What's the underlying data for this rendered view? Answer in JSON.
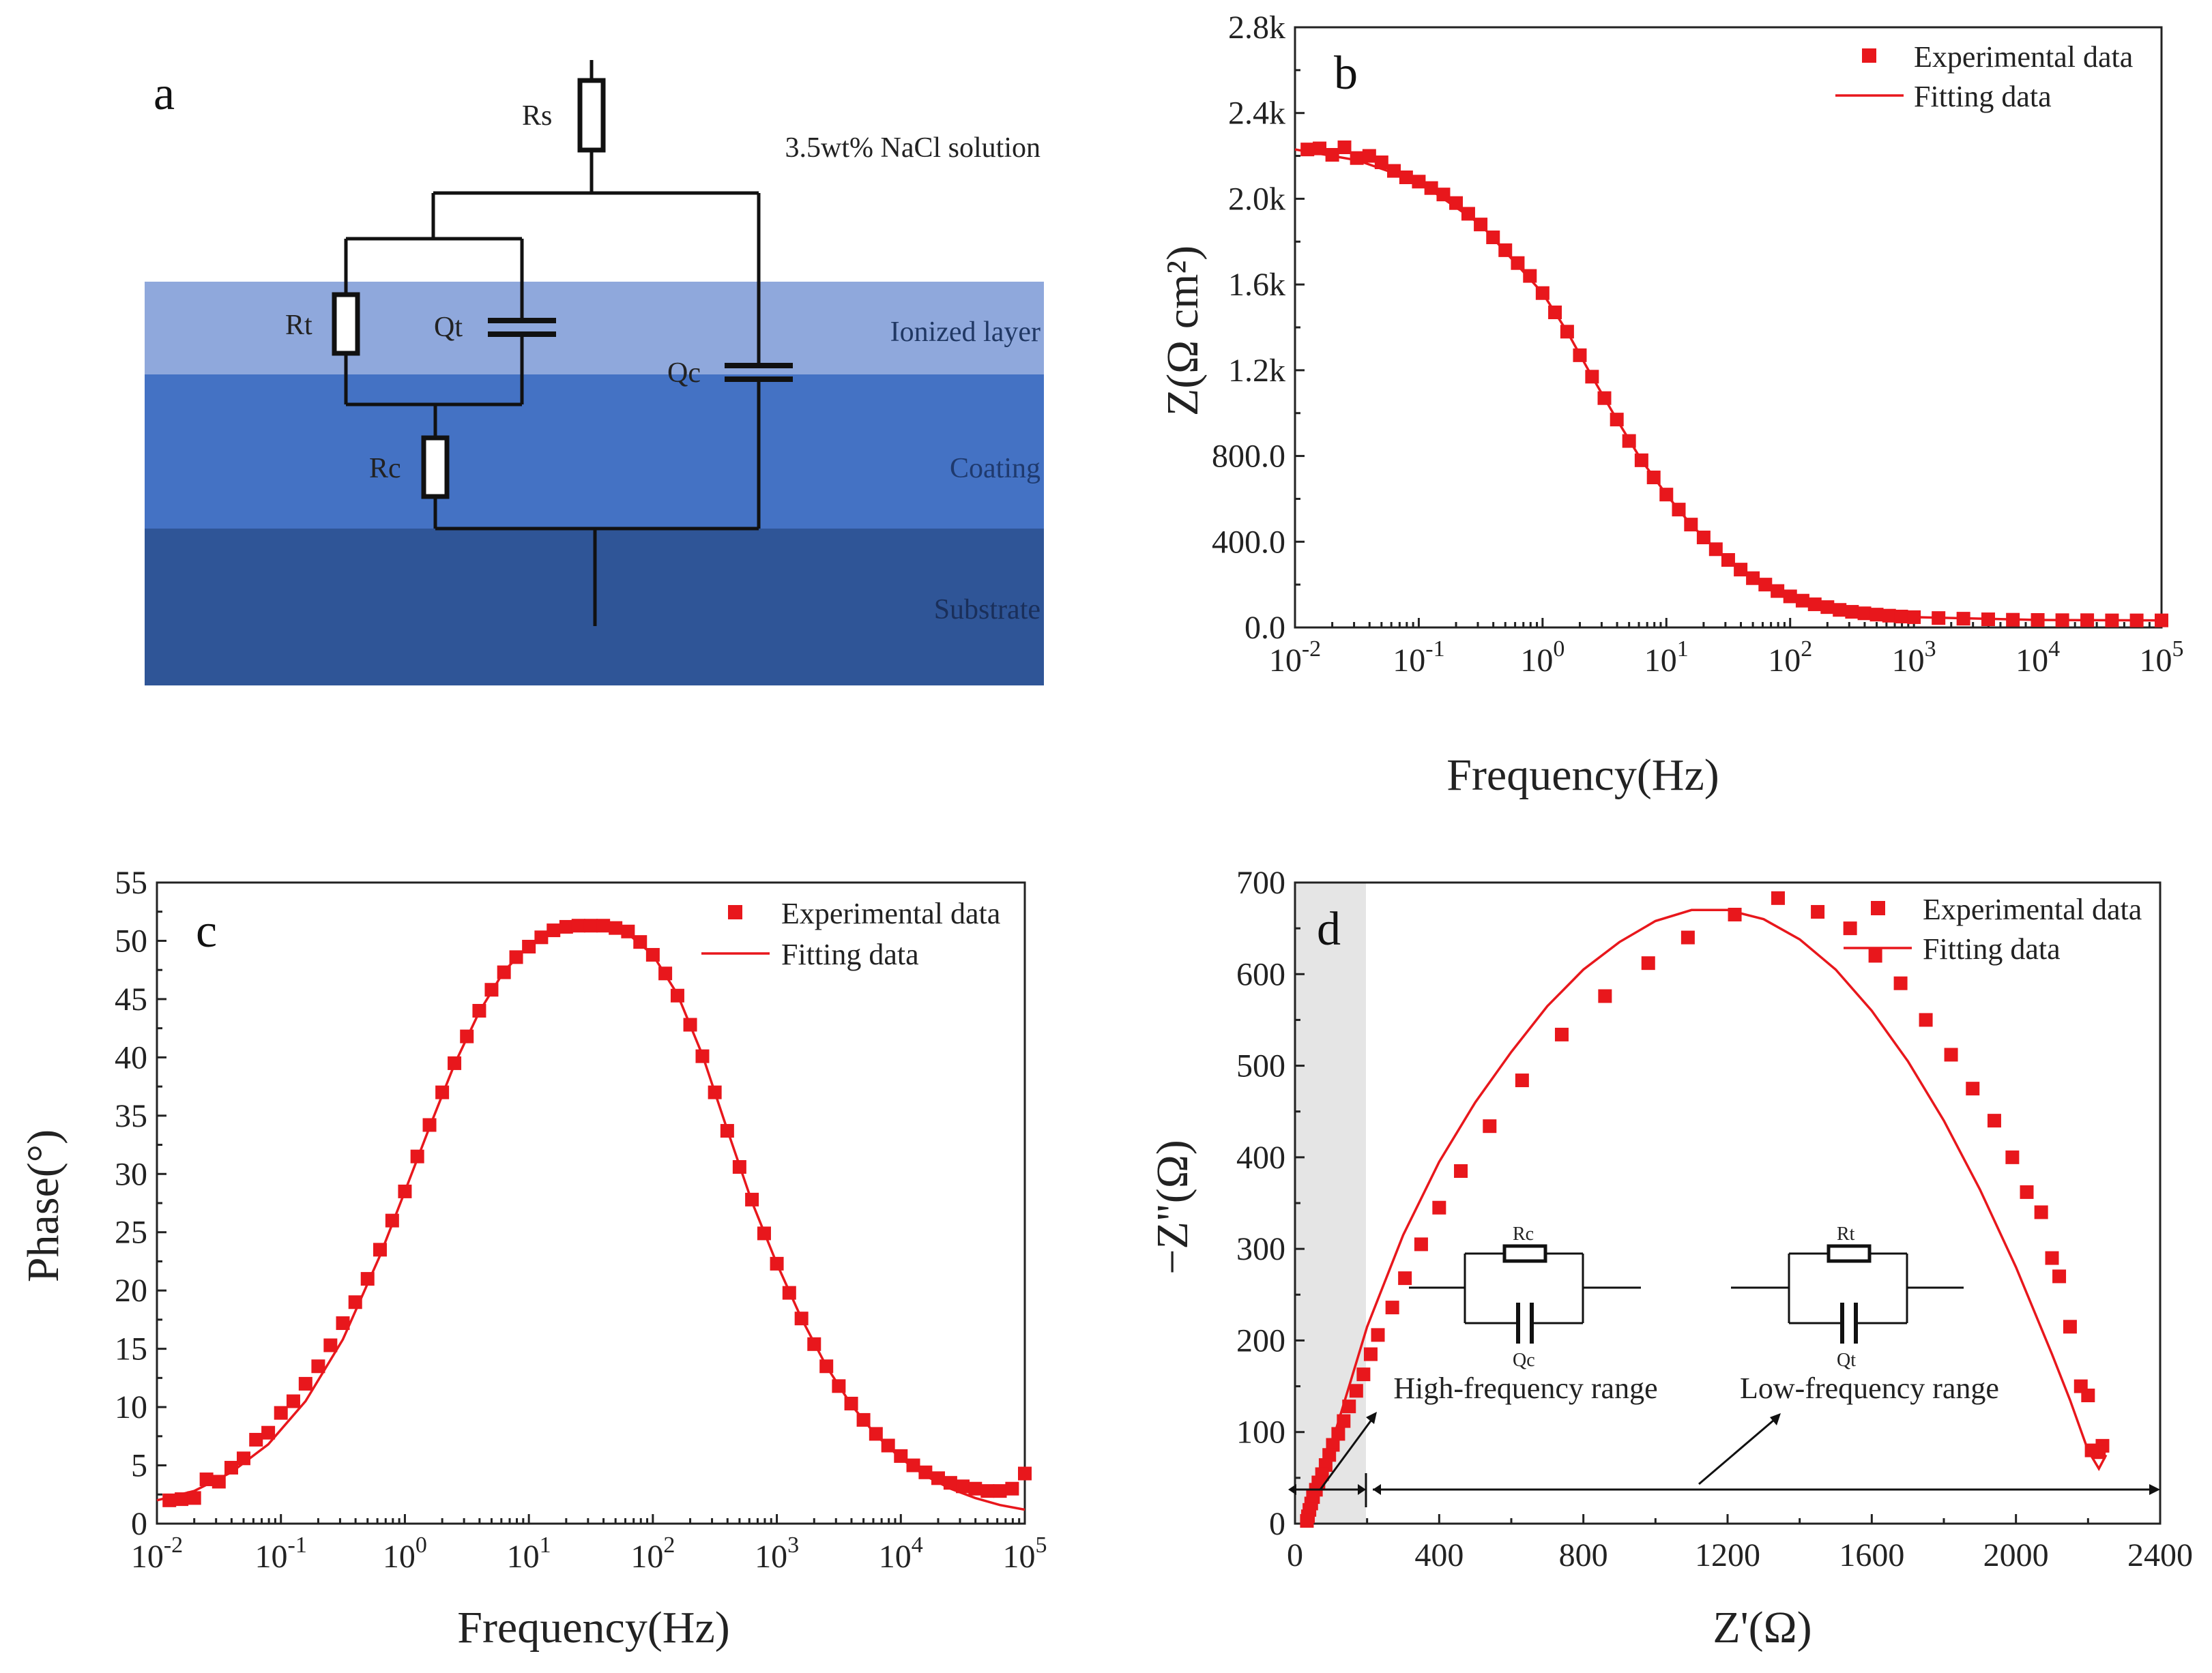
{
  "panel_a": {
    "label": "a",
    "solution_label": "3.5wt% NaCl solution",
    "layers": [
      "Ionized layer",
      "Coating",
      "Substrate"
    ],
    "layer_colors": [
      "#8fa8dc",
      "#4472c4",
      "#2f5597"
    ],
    "components": {
      "rs": "Rs",
      "rt": "Rt",
      "qt": "Qt",
      "rc": "Rc",
      "qc": "Qc"
    }
  },
  "colors": {
    "series": "#e8171c"
  },
  "chart_data": [
    {
      "id": "b",
      "type": "scatter",
      "panel_label": "b",
      "xlabel": "Frequency(Hz)",
      "ylabel": "Z(Ω cm²)",
      "x_scale": "log",
      "xlim": [
        0.01,
        100000
      ],
      "ylim": [
        0,
        2800
      ],
      "x_ticks": [
        "10-2",
        "10-1",
        "100",
        "101",
        "102",
        "103",
        "104",
        "105"
      ],
      "y_ticks": [
        "0.0",
        "400.0",
        "800.0",
        "1.2k",
        "1.6k",
        "2.0k",
        "2.4k",
        "2.8k"
      ],
      "legend": [
        "Experimental data",
        "Fitting data"
      ],
      "legend_position": "top-right",
      "series": [
        {
          "name": "Experimental data",
          "x": [
            0.0126,
            0.0158,
            0.02,
            0.0251,
            0.0316,
            0.0398,
            0.05,
            0.063,
            0.079,
            0.1,
            0.126,
            0.158,
            0.2,
            0.251,
            0.316,
            0.398,
            0.5,
            0.63,
            0.79,
            1,
            1.26,
            1.58,
            2,
            2.51,
            3.16,
            3.98,
            5,
            6.3,
            7.9,
            10,
            12.6,
            15.8,
            20,
            25.1,
            31.6,
            39.8,
            50,
            63,
            79,
            100,
            126,
            158,
            200,
            251,
            316,
            398,
            500,
            630,
            790,
            1000,
            1580,
            2510,
            3980,
            6300,
            10000,
            15800,
            25100,
            39800,
            63000,
            100000
          ],
          "y": [
            2230,
            2235,
            2205,
            2240,
            2190,
            2200,
            2170,
            2130,
            2100,
            2080,
            2050,
            2020,
            1980,
            1930,
            1880,
            1820,
            1760,
            1700,
            1640,
            1560,
            1470,
            1380,
            1270,
            1170,
            1070,
            970,
            870,
            780,
            700,
            620,
            550,
            480,
            420,
            365,
            315,
            270,
            230,
            200,
            170,
            145,
            125,
            108,
            95,
            82,
            73,
            66,
            60,
            55,
            51,
            48,
            44,
            41,
            38,
            36,
            35,
            34,
            34,
            33,
            33,
            33
          ]
        },
        {
          "name": "Fitting data",
          "x": [
            0.01,
            0.0316,
            0.1,
            0.316,
            1,
            1.58,
            2.51,
            3.98,
            6.3,
            10,
            15.8,
            25.1,
            39.8,
            63,
            100,
            316,
            1000,
            10000,
            100000
          ],
          "y": [
            2230,
            2180,
            2080,
            1880,
            1560,
            1380,
            1170,
            970,
            780,
            620,
            480,
            365,
            270,
            200,
            145,
            73,
            48,
            35,
            33
          ]
        }
      ]
    },
    {
      "id": "c",
      "type": "scatter",
      "panel_label": "c",
      "xlabel": "Frequency(Hz)",
      "ylabel": "Phase(°)",
      "x_scale": "log",
      "xlim": [
        0.01,
        100000
      ],
      "ylim": [
        0,
        55
      ],
      "x_ticks": [
        "10-2",
        "10-1",
        "100",
        "101",
        "102",
        "103",
        "104",
        "105"
      ],
      "y_ticks": [
        "0",
        "5",
        "10",
        "15",
        "20",
        "25",
        "30",
        "35",
        "40",
        "45",
        "50",
        "55"
      ],
      "legend": [
        "Experimental data",
        "Fitting data"
      ],
      "legend_position": "top-right",
      "series": [
        {
          "name": "Experimental data",
          "x": [
            0.0126,
            0.0158,
            0.02,
            0.0251,
            0.0316,
            0.0398,
            0.05,
            0.063,
            0.079,
            0.1,
            0.126,
            0.158,
            0.2,
            0.251,
            0.316,
            0.398,
            0.5,
            0.63,
            0.79,
            1,
            1.26,
            1.58,
            2,
            2.51,
            3.16,
            3.98,
            5,
            6.3,
            7.9,
            10,
            12.6,
            15.8,
            20,
            25.1,
            31.6,
            39.8,
            50,
            63,
            79,
            100,
            126,
            158,
            200,
            251,
            316,
            398,
            500,
            630,
            790,
            1000,
            1260,
            1580,
            2000,
            2510,
            3160,
            3980,
            5000,
            6300,
            7900,
            10000,
            12600,
            15800,
            20000,
            25100,
            31600,
            39800,
            50000,
            63000,
            79000,
            100000
          ],
          "y": [
            2.0,
            2.1,
            2.2,
            3.8,
            3.6,
            4.8,
            5.6,
            7.2,
            7.8,
            9.5,
            10.5,
            12.0,
            13.5,
            15.3,
            17.2,
            19.0,
            21.0,
            23.5,
            26.0,
            28.5,
            31.5,
            34.2,
            37.0,
            39.5,
            41.8,
            44.0,
            45.8,
            47.3,
            48.6,
            49.5,
            50.3,
            50.9,
            51.2,
            51.3,
            51.3,
            51.3,
            51.1,
            50.8,
            49.9,
            48.8,
            47.2,
            45.3,
            42.8,
            40.1,
            37.0,
            33.7,
            30.6,
            27.8,
            24.9,
            22.3,
            19.8,
            17.6,
            15.4,
            13.5,
            11.8,
            10.3,
            8.9,
            7.7,
            6.7,
            5.8,
            5.0,
            4.4,
            3.9,
            3.5,
            3.2,
            3.0,
            2.8,
            2.8,
            3.0,
            4.3
          ]
        },
        {
          "name": "Fitting data",
          "x": [
            0.01,
            0.02,
            0.0398,
            0.079,
            0.158,
            0.316,
            0.63,
            1,
            1.58,
            2.51,
            3.98,
            6.3,
            10,
            15.8,
            25.1,
            39.8,
            63,
            100,
            158,
            251,
            398,
            630,
            1000,
            1580,
            2510,
            3980,
            6300,
            10000,
            15800,
            25100,
            39800,
            63000,
            100000
          ],
          "y": [
            2.0,
            2.8,
            4.4,
            6.8,
            10.5,
            15.8,
            23.0,
            28.5,
            34.0,
            39.4,
            43.9,
            47.4,
            49.6,
            50.9,
            51.3,
            51.2,
            50.6,
            48.8,
            45.4,
            40.2,
            33.8,
            27.6,
            22.3,
            17.6,
            13.5,
            10.2,
            7.6,
            5.6,
            4.1,
            3.0,
            2.2,
            1.6,
            1.2
          ]
        }
      ]
    },
    {
      "id": "d",
      "type": "scatter",
      "panel_label": "d",
      "xlabel": "Z'(Ω)",
      "ylabel": "−Z\"(Ω)",
      "xlim": [
        0,
        2400
      ],
      "ylim": [
        0,
        700
      ],
      "x_ticks": [
        "0",
        "400",
        "800",
        "1200",
        "1600",
        "2000",
        "2400"
      ],
      "y_ticks": [
        "0",
        "100",
        "200",
        "300",
        "400",
        "500",
        "600",
        "700"
      ],
      "legend": [
        "Experimental data",
        "Fitting data"
      ],
      "legend_position": "top-right",
      "annotations": {
        "high_range": "High-frequency range",
        "low_range": "Low-frequency range",
        "inset_high": {
          "r": "Rc",
          "q": "Qc"
        },
        "inset_low": {
          "r": "Rt",
          "q": "Qt"
        }
      },
      "series": [
        {
          "name": "Experimental data",
          "x": [
            2240,
            2230,
            2210,
            2200,
            2180,
            2150,
            2120,
            2100,
            2070,
            2030,
            1990,
            1940,
            1880,
            1820,
            1750,
            1680,
            1610,
            1540,
            1450,
            1340,
            1220,
            1090,
            980,
            860,
            740,
            630,
            540,
            460,
            400,
            350,
            305,
            270,
            230,
            210,
            190,
            170,
            150,
            135,
            120,
            105,
            95,
            85,
            75,
            65,
            58,
            50,
            45,
            40,
            36,
            33
          ],
          "y": [
            85,
            78,
            80,
            140,
            150,
            215,
            270,
            290,
            340,
            362,
            400,
            440,
            475,
            512,
            550,
            590,
            620,
            650,
            668,
            683,
            665,
            640,
            612,
            576,
            534,
            484,
            434,
            385,
            345,
            305,
            268,
            236,
            206,
            185,
            163,
            145,
            128,
            112,
            98,
            86,
            75,
            64,
            54,
            45,
            37,
            29,
            22,
            15,
            8,
            3
          ]
        },
        {
          "name": "Fitting data",
          "x": [
            33,
            40,
            60,
            100,
            150,
            200,
            300,
            400,
            500,
            600,
            700,
            800,
            900,
            1000,
            1100,
            1200,
            1300,
            1400,
            1500,
            1600,
            1700,
            1800,
            1900,
            2000,
            2100,
            2150,
            2200,
            2230,
            2250
          ],
          "y": [
            0,
            10,
            35,
            85,
            150,
            215,
            315,
            395,
            460,
            515,
            565,
            605,
            635,
            658,
            670,
            670,
            660,
            638,
            605,
            560,
            505,
            440,
            365,
            280,
            185,
            135,
            80,
            60,
            75
          ]
        }
      ]
    }
  ]
}
